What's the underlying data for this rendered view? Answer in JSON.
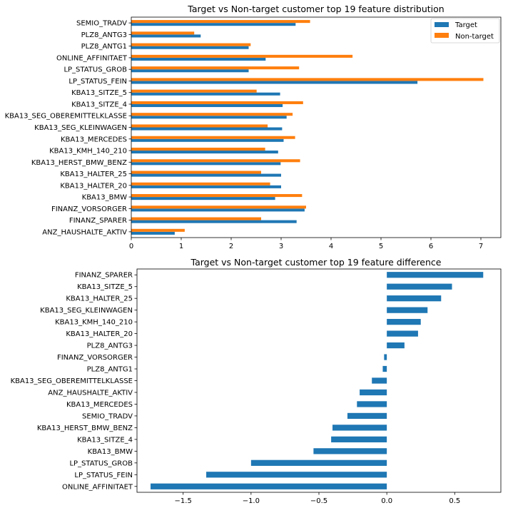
{
  "colors": {
    "target": "#1f77b4",
    "nontarget": "#ff7f0e"
  },
  "chart_data": [
    {
      "type": "bar",
      "orientation": "horizontal",
      "title": "Target vs Non-target customer top 19 feature distribution",
      "categories": [
        "SEMIO_TRADV",
        "PLZ8_ANTG3",
        "PLZ8_ANTG1",
        "ONLINE_AFFINITAET",
        "LP_STATUS_GROB",
        "LP_STATUS_FEIN",
        "KBA13_SITZE_5",
        "KBA13_SITZE_4",
        "KBA13_SEG_OBEREMITTELKLASSE",
        "KBA13_SEG_KLEINWAGEN",
        "KBA13_MERCEDES",
        "KBA13_KMH_140_210",
        "KBA13_HERST_BMW_BENZ",
        "KBA13_HALTER_25",
        "KBA13_HALTER_20",
        "KBA13_BMW",
        "FINANZ_VORSORGER",
        "FINANZ_SPARER",
        "ANZ_HAUSHALTE_AKTIV"
      ],
      "series": [
        {
          "name": "Target",
          "values": [
            3.29,
            1.39,
            2.35,
            2.69,
            2.35,
            5.73,
            2.98,
            3.03,
            3.11,
            3.02,
            3.05,
            2.94,
            2.99,
            3.0,
            3.0,
            2.88,
            3.47,
            3.31,
            0.87
          ]
        },
        {
          "name": "Non-target",
          "values": [
            3.58,
            1.26,
            2.39,
            4.43,
            3.36,
            7.05,
            2.51,
            3.44,
            3.23,
            2.73,
            3.28,
            2.68,
            3.38,
            2.6,
            2.78,
            3.42,
            3.5,
            2.6,
            1.07
          ]
        }
      ],
      "xlim": [
        0,
        7.4
      ],
      "xticks": [
        "0",
        "1",
        "2",
        "3",
        "4",
        "5",
        "6",
        "7"
      ],
      "legend": "top-right"
    },
    {
      "type": "bar",
      "orientation": "horizontal",
      "title": "Target vs Non-target customer top 19 feature difference",
      "categories": [
        "FINANZ_SPARER",
        "KBA13_SITZE_5",
        "KBA13_HALTER_25",
        "KBA13_SEG_KLEINWAGEN",
        "KBA13_KMH_140_210",
        "KBA13_HALTER_20",
        "PLZ8_ANTG3",
        "FINANZ_VORSORGER",
        "PLZ8_ANTG1",
        "KBA13_SEG_OBEREMITTELKLASSE",
        "ANZ_HAUSHALTE_AKTIV",
        "KBA13_MERCEDES",
        "SEMIO_TRADV",
        "KBA13_HERST_BMW_BENZ",
        "KBA13_SITZE_4",
        "KBA13_BMW",
        "LP_STATUS_GROB",
        "LP_STATUS_FEIN",
        "ONLINE_AFFINITAET"
      ],
      "values": [
        0.71,
        0.48,
        0.4,
        0.3,
        0.25,
        0.23,
        0.13,
        -0.02,
        -0.03,
        -0.11,
        -0.2,
        -0.22,
        -0.29,
        -0.4,
        -0.41,
        -0.54,
        -1.0,
        -1.33,
        -1.74
      ],
      "xlim": [
        -1.84,
        0.84
      ],
      "xticks": [
        {
          "v": -1.5,
          "label": "−1.5"
        },
        {
          "v": -1.0,
          "label": "−1.0"
        },
        {
          "v": -0.5,
          "label": "−0.5"
        },
        {
          "v": 0.0,
          "label": "0.0"
        },
        {
          "v": 0.5,
          "label": "0.5"
        }
      ]
    }
  ]
}
